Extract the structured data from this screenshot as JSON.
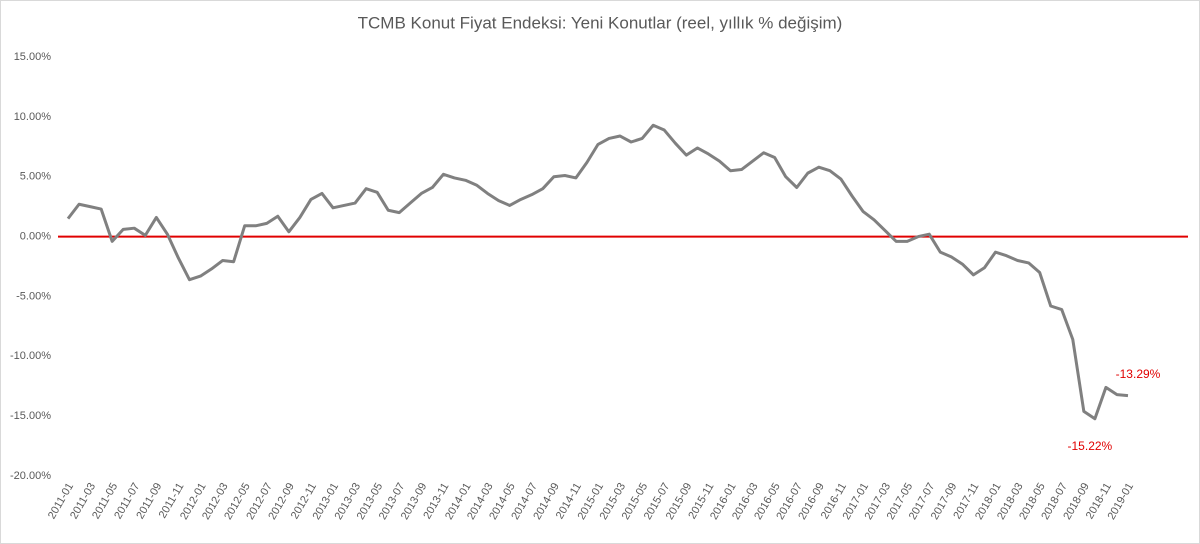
{
  "chart_data": {
    "type": "line",
    "title": "TCMB Konut Fiyat Endeksi: Yeni Konutlar (reel, yıllık % değişim)",
    "categories": [
      "2011-01",
      null,
      "2011-03",
      null,
      "2011-05",
      null,
      "2011-07",
      null,
      "2011-09",
      null,
      "2011-11",
      null,
      "2012-01",
      null,
      "2012-03",
      null,
      "2012-05",
      null,
      "2012-07",
      null,
      "2012-09",
      null,
      "2012-11",
      null,
      "2013-01",
      null,
      "2013-03",
      null,
      "2013-05",
      null,
      "2013-07",
      null,
      "2013-09",
      null,
      "2013-11",
      null,
      "2014-01",
      null,
      "2014-03",
      null,
      "2014-05",
      null,
      "2014-07",
      null,
      "2014-09",
      null,
      "2014-11",
      null,
      "2015-01",
      null,
      "2015-03",
      null,
      "2015-05",
      null,
      "2015-07",
      null,
      "2015-09",
      null,
      "2015-11",
      null,
      "2016-01",
      null,
      "2016-03",
      null,
      "2016-05",
      null,
      "2016-07",
      null,
      "2016-09",
      null,
      "2016-11",
      null,
      "2017-01",
      null,
      "2017-03",
      null,
      "2017-05",
      null,
      "2017-07",
      null,
      "2017-09",
      null,
      "2017-11",
      null,
      "2018-01",
      null,
      "2018-03",
      null,
      "2018-05",
      null,
      "2018-07",
      null,
      "2018-09",
      null,
      "2018-11",
      null,
      "2019-01"
    ],
    "series": [
      {
        "color": "#808080",
        "values": [
          1.5,
          2.7,
          2.5,
          2.3,
          -0.4,
          0.6,
          0.7,
          0.1,
          1.6,
          0.2,
          -1.8,
          -3.6,
          -3.3,
          -2.7,
          -2.0,
          -2.1,
          0.9,
          0.9,
          1.1,
          1.7,
          0.4,
          1.6,
          3.1,
          3.6,
          2.4,
          2.6,
          2.8,
          4.0,
          3.7,
          2.2,
          2.0,
          2.8,
          3.6,
          4.1,
          5.2,
          4.9,
          4.7,
          4.3,
          3.6,
          3.0,
          2.6,
          3.1,
          3.5,
          4.0,
          5.0,
          5.1,
          4.9,
          6.2,
          7.7,
          8.2,
          8.4,
          7.9,
          8.2,
          9.3,
          8.9,
          7.8,
          6.8,
          7.4,
          6.9,
          6.3,
          5.5,
          5.6,
          6.3,
          7.0,
          6.6,
          5.0,
          4.1,
          5.3,
          5.8,
          5.5,
          4.8,
          3.4,
          2.1,
          1.4,
          0.5,
          -0.4,
          -0.4,
          0.0,
          0.2,
          -1.3,
          -1.7,
          -2.3,
          -3.2,
          -2.6,
          -1.3,
          -1.6,
          -2.0,
          -2.2,
          -3.0,
          -5.8,
          -6.1,
          -8.6,
          -14.6,
          -15.22,
          -12.6,
          -13.2,
          -13.29
        ],
        "value_labels": [
          null,
          null,
          null,
          null,
          null,
          null,
          null,
          null,
          null,
          null,
          null,
          null,
          null,
          null,
          null,
          null,
          null,
          null,
          null,
          null,
          null,
          null,
          null,
          null,
          null,
          null,
          null,
          null,
          null,
          null,
          null,
          null,
          null,
          null,
          null,
          null,
          null,
          null,
          null,
          null,
          null,
          null,
          null,
          null,
          null,
          null,
          null,
          null,
          null,
          null,
          null,
          null,
          null,
          null,
          null,
          null,
          null,
          null,
          null,
          null,
          null,
          null,
          null,
          null,
          null,
          null,
          null,
          null,
          null,
          null,
          null,
          null,
          null,
          null,
          null,
          null,
          null,
          null,
          null,
          null,
          null,
          null,
          null,
          null,
          null,
          null,
          null,
          null,
          null,
          null,
          null,
          null,
          null,
          "-15.22%",
          null,
          null,
          "-13.29%"
        ],
        "label_color": "#e00000"
      }
    ],
    "ylim": [
      -20,
      15
    ],
    "yticks": [
      {
        "value": -20,
        "label": "-20.00%"
      },
      {
        "value": -15,
        "label": "-15.00%"
      },
      {
        "value": -10,
        "label": "-10.00%"
      },
      {
        "value": -5,
        "label": "-5.00%"
      },
      {
        "value": 0,
        "label": "0.00%"
      },
      {
        "value": 5,
        "label": "5.00%"
      },
      {
        "value": 10,
        "label": "10.00%"
      },
      {
        "value": 15,
        "label": "15.00%"
      }
    ],
    "reference_line": {
      "value": 0,
      "color": "#e00000"
    }
  }
}
